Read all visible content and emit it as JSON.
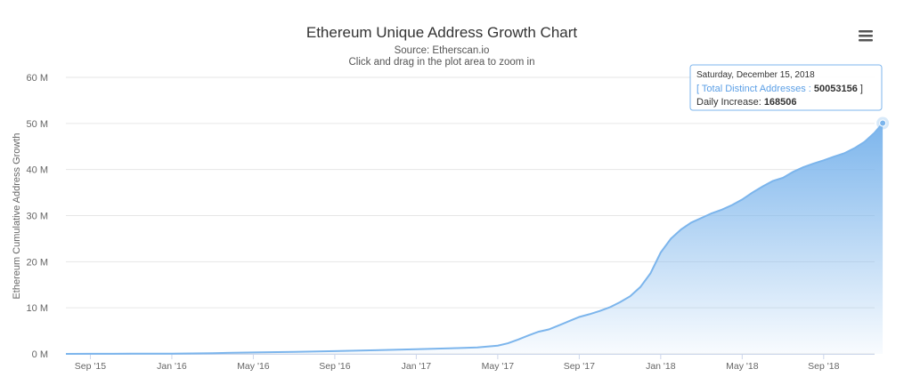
{
  "chart_data": {
    "type": "area",
    "title": "Ethereum Unique Address Growth Chart",
    "subtitle": "Source: Etherscan.io",
    "zoom_hint": "Click and drag in the plot area to zoom in",
    "ylabel": "Ethereum Cumulative Address Growth",
    "ylim": [
      0,
      60
    ],
    "y_unit": "M",
    "y_ticks": [
      {
        "value": 0,
        "label": "0 M"
      },
      {
        "value": 10,
        "label": "10 M"
      },
      {
        "value": 20,
        "label": "20 M"
      },
      {
        "value": 30,
        "label": "30 M"
      },
      {
        "value": 40,
        "label": "40 M"
      },
      {
        "value": 50,
        "label": "50 M"
      },
      {
        "value": 60,
        "label": "60 M"
      }
    ],
    "x_range_months": [
      0.8,
      40.5
    ],
    "x_ticks": [
      {
        "value": 2,
        "label": "Sep '15"
      },
      {
        "value": 6,
        "label": "Jan '16"
      },
      {
        "value": 10,
        "label": "May '16"
      },
      {
        "value": 14,
        "label": "Sep '16"
      },
      {
        "value": 18,
        "label": "Jan '17"
      },
      {
        "value": 22,
        "label": "May '17"
      },
      {
        "value": 26,
        "label": "Sep '17"
      },
      {
        "value": 30,
        "label": "Jan '18"
      },
      {
        "value": 34,
        "label": "May '18"
      },
      {
        "value": 38,
        "label": "Sep '18"
      }
    ],
    "series": [
      {
        "name": "Total Distinct Addresses",
        "color": "#7cb5ec",
        "points": [
          [
            0.8,
            0.0
          ],
          [
            2,
            0.01
          ],
          [
            4,
            0.03
          ],
          [
            6,
            0.06
          ],
          [
            8,
            0.15
          ],
          [
            10,
            0.3
          ],
          [
            12,
            0.45
          ],
          [
            14,
            0.6
          ],
          [
            16,
            0.8
          ],
          [
            18,
            1.0
          ],
          [
            20,
            1.25
          ],
          [
            21,
            1.4
          ],
          [
            22,
            1.8
          ],
          [
            22.5,
            2.3
          ],
          [
            23,
            3.1
          ],
          [
            23.5,
            4.0
          ],
          [
            24,
            4.8
          ],
          [
            24.5,
            5.3
          ],
          [
            25,
            6.2
          ],
          [
            25.5,
            7.1
          ],
          [
            26,
            8.0
          ],
          [
            26.5,
            8.6
          ],
          [
            27,
            9.3
          ],
          [
            27.5,
            10.1
          ],
          [
            28,
            11.2
          ],
          [
            28.5,
            12.5
          ],
          [
            29,
            14.5
          ],
          [
            29.5,
            17.5
          ],
          [
            30,
            22.0
          ],
          [
            30.5,
            25.0
          ],
          [
            31,
            27.0
          ],
          [
            31.5,
            28.5
          ],
          [
            32,
            29.5
          ],
          [
            32.5,
            30.5
          ],
          [
            33,
            31.3
          ],
          [
            33.5,
            32.3
          ],
          [
            34,
            33.5
          ],
          [
            34.5,
            35.0
          ],
          [
            35,
            36.3
          ],
          [
            35.5,
            37.5
          ],
          [
            36,
            38.2
          ],
          [
            36.5,
            39.5
          ],
          [
            37,
            40.5
          ],
          [
            37.5,
            41.3
          ],
          [
            38,
            42.0
          ],
          [
            38.5,
            42.8
          ],
          [
            39,
            43.5
          ],
          [
            39.5,
            44.6
          ],
          [
            40,
            46.0
          ],
          [
            40.5,
            48.0
          ],
          [
            40.9,
            50.053156
          ]
        ]
      }
    ],
    "highlight": {
      "x": 40.9,
      "y": 50.053156,
      "date": "Saturday, December 15, 2018",
      "series_label": "Total Distinct Addresses",
      "total_value": "50053156",
      "daily_label": "Daily Increase:",
      "daily_value": "168506"
    },
    "grid": true,
    "legend": "none"
  },
  "colors": {
    "series": "#7cb5ec",
    "tooltip_border": "#7cb5ec",
    "tooltip_accent": "#5b9fe6"
  },
  "menu_icon": "hamburger-menu-icon"
}
